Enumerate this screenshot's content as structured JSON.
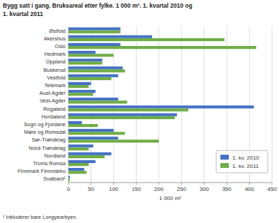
{
  "chart_data": {
    "type": "bar",
    "orientation": "horizontal",
    "title": "Bygg satt i gang. Bruksareal etter fylke. 1 000 m². 1. kvartal 2010 og",
    "subtitle": "1. kvartal 2011",
    "annotations": [
      "¹ Inkluderer bare Longyearbyen."
    ],
    "xlabel": "1 000 m²",
    "categories": [
      "Østfold",
      "Akershus",
      "Oslo",
      "Hedmark",
      "Oppland",
      "Buskerud",
      "Vestfold",
      "Telemark",
      "Aust-Agder",
      "Vest-Agder",
      "Rogaland",
      "Hordaland",
      "Sogn og Fjordane",
      "Møre og Romsdal",
      "Sør-Trøndelag",
      "Nord-Trøndelag",
      "Nordland",
      "Troms Romsa",
      "Finnmark Finnmárku",
      "Svalbard¹"
    ],
    "series": [
      {
        "name": "1. kv. 2010",
        "color": "#4472C4",
        "values": [
          115,
          185,
          115,
          60,
          75,
          120,
          110,
          50,
          60,
          110,
          410,
          240,
          30,
          100,
          110,
          55,
          95,
          60,
          35,
          3
        ]
      },
      {
        "name": "1. kv. 2011",
        "color": "#70AD47",
        "values": [
          115,
          345,
          415,
          100,
          75,
          125,
          95,
          45,
          55,
          130,
          265,
          235,
          65,
          125,
          200,
          45,
          80,
          45,
          40,
          3
        ]
      }
    ],
    "xlim": [
      0,
      450
    ],
    "xticks": [
      0,
      50,
      100,
      150,
      200,
      250,
      300,
      350,
      400,
      450
    ],
    "grid": true,
    "legend": "lower right"
  }
}
